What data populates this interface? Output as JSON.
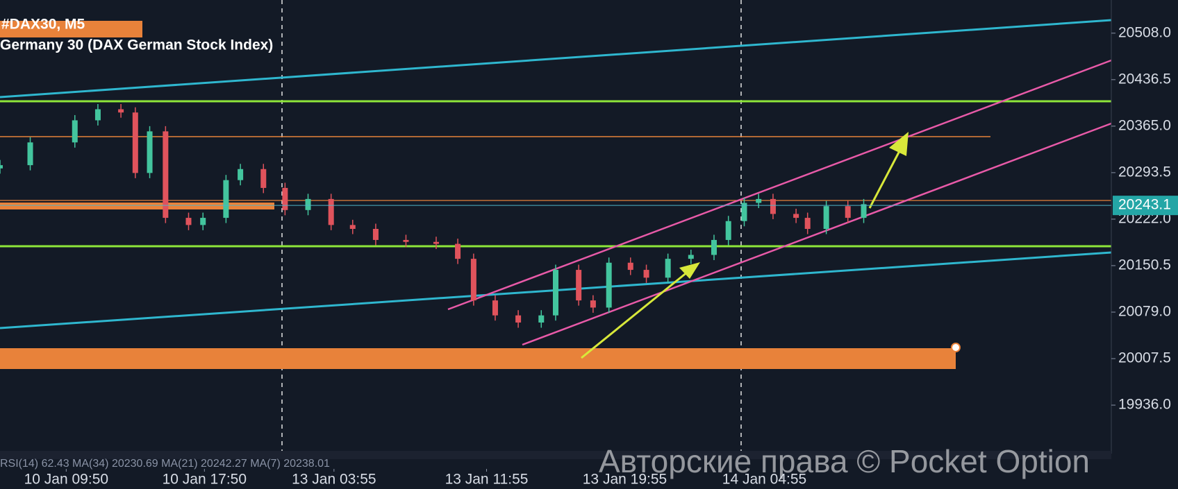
{
  "chart_data": {
    "type": "candlestick",
    "title": "#DAX30, M5",
    "subtitle": "Germany 30 (DAX German Stock Index)",
    "indicator_text": "RSI(14) 62.43 MA(34) 20230.69 MA(21) 20242.27 MA(7) 20238.01",
    "watermark": "Авторские права © Pocket Option",
    "x": [
      -46,
      -25,
      6,
      22,
      38,
      48,
      58,
      69,
      85,
      95,
      111,
      121,
      137,
      152,
      168,
      184,
      199,
      215,
      236,
      257,
      272,
      283,
      298,
      314,
      330,
      340,
      356,
      366,
      377,
      392,
      403,
      418,
      434,
      450,
      460,
      471,
      481,
      491,
      507,
      515,
      528,
      543,
      554
    ],
    "open": [
      20300,
      20305,
      20340,
      20374,
      20391,
      20386,
      20293,
      20357,
      20224,
      20213,
      20224,
      20282,
      20299,
      20270,
      20236,
      20253,
      20213,
      20207,
      20190,
      20187,
      20184,
      20161,
      20097,
      20074,
      20063,
      20074,
      20144,
      20097,
      20086,
      20155,
      20144,
      20132,
      20161,
      20167,
      20190,
      20219,
      20247,
      20253,
      20230,
      20224,
      20207,
      20242,
      20224
    ],
    "high": [
      20313,
      20348,
      20382,
      20399,
      20399,
      20394,
      20365,
      20365,
      20232,
      20232,
      20290,
      20307,
      20307,
      20278,
      20261,
      20261,
      20221,
      20215,
      20198,
      20195,
      20192,
      20169,
      20105,
      20082,
      20082,
      20152,
      20152,
      20105,
      20163,
      20163,
      20152,
      20169,
      20175,
      20198,
      20227,
      20255,
      20261,
      20261,
      20238,
      20232,
      20250,
      20250,
      20253
    ],
    "low": [
      20292,
      20297,
      20332,
      20366,
      20378,
      20285,
      20285,
      20216,
      20205,
      20205,
      20216,
      20274,
      20262,
      20228,
      20228,
      20205,
      20199,
      20182,
      20179,
      20176,
      20153,
      20089,
      20066,
      20055,
      20055,
      20066,
      20089,
      20078,
      20078,
      20136,
      20124,
      20124,
      20153,
      20159,
      20182,
      20211,
      20239,
      20222,
      20216,
      20199,
      20199,
      20216,
      20216
    ],
    "close": [
      20305,
      20340,
      20374,
      20391,
      20386,
      20293,
      20357,
      20224,
      20213,
      20224,
      20282,
      20299,
      20270,
      20236,
      20253,
      20213,
      20207,
      20190,
      20187,
      20184,
      20161,
      20097,
      20074,
      20063,
      20074,
      20144,
      20097,
      20086,
      20155,
      20144,
      20132,
      20161,
      20167,
      20190,
      20219,
      20247,
      20253,
      20230,
      20224,
      20207,
      20242,
      20224,
      20245
    ],
    "up_color": "#43c59e",
    "down_color": "#e0535c",
    "last_price": 20243.1,
    "xlim": [
      -46,
      726
    ],
    "xticks": [
      {
        "value": 0,
        "label": "10 Jan 09:50"
      },
      {
        "value": 96,
        "label": "10 Jan 17:50"
      },
      {
        "value": 186,
        "label": "13 Jan 03:55"
      },
      {
        "value": 292,
        "label": "13 Jan 11:55"
      },
      {
        "value": 388,
        "label": "13 Jan 19:55"
      },
      {
        "value": 485,
        "label": "14 Jan 04:55"
      }
    ],
    "ylim": [
      19855,
      20559
    ],
    "yticks": [
      {
        "value": 20508,
        "label": "20508.0"
      },
      {
        "value": 20436.5,
        "label": "20436.5"
      },
      {
        "value": 20365,
        "label": "20365.0"
      },
      {
        "value": 20293.5,
        "label": "20293.5"
      },
      {
        "value": 20222,
        "label": "20222.0"
      },
      {
        "value": 20150.5,
        "label": "20150.5"
      },
      {
        "value": 20079,
        "label": "20079.0"
      },
      {
        "value": 20007.5,
        "label": "20007.5"
      },
      {
        "value": 19936,
        "label": "19936.0"
      }
    ]
  }
}
